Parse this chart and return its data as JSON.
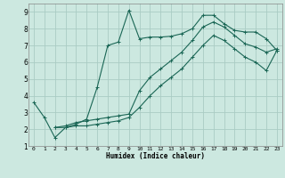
{
  "title": "",
  "xlabel": "Humidex (Indice chaleur)",
  "bg_color": "#cce8e0",
  "grid_color": "#aaccc4",
  "line_color": "#1a6655",
  "xlim": [
    -0.5,
    23.5
  ],
  "ylim": [
    1,
    9.5
  ],
  "xticks": [
    0,
    1,
    2,
    3,
    4,
    5,
    6,
    7,
    8,
    9,
    10,
    11,
    12,
    13,
    14,
    15,
    16,
    17,
    18,
    19,
    20,
    21,
    22,
    23
  ],
  "yticks": [
    1,
    2,
    3,
    4,
    5,
    6,
    7,
    8,
    9
  ],
  "line1_x": [
    0,
    1,
    2,
    3,
    4,
    5,
    6,
    7,
    8,
    9,
    10,
    11,
    12,
    13,
    14,
    15,
    16,
    17,
    18,
    19,
    20,
    21,
    22,
    23
  ],
  "line1_y": [
    3.6,
    2.7,
    1.5,
    2.1,
    2.3,
    2.6,
    4.5,
    7.0,
    7.2,
    9.1,
    7.4,
    7.5,
    7.5,
    7.55,
    7.7,
    8.0,
    8.8,
    8.8,
    8.3,
    7.9,
    7.8,
    7.8,
    7.4,
    6.7
  ],
  "line2_x": [
    2,
    3,
    4,
    5,
    6,
    7,
    8,
    9,
    10,
    11,
    12,
    13,
    14,
    15,
    16,
    17,
    18,
    19,
    20,
    21,
    22,
    23
  ],
  "line2_y": [
    2.1,
    2.2,
    2.4,
    2.5,
    2.6,
    2.7,
    2.8,
    2.9,
    4.3,
    5.1,
    5.6,
    6.1,
    6.6,
    7.3,
    8.1,
    8.4,
    8.1,
    7.6,
    7.1,
    6.9,
    6.6,
    6.8
  ],
  "line3_x": [
    2,
    3,
    4,
    5,
    6,
    7,
    8,
    9,
    10,
    11,
    12,
    13,
    14,
    15,
    16,
    17,
    18,
    19,
    20,
    21,
    22,
    23
  ],
  "line3_y": [
    2.1,
    2.1,
    2.2,
    2.2,
    2.3,
    2.4,
    2.5,
    2.7,
    3.3,
    4.0,
    4.6,
    5.1,
    5.6,
    6.3,
    7.0,
    7.6,
    7.3,
    6.8,
    6.3,
    6.0,
    5.5,
    6.7
  ]
}
